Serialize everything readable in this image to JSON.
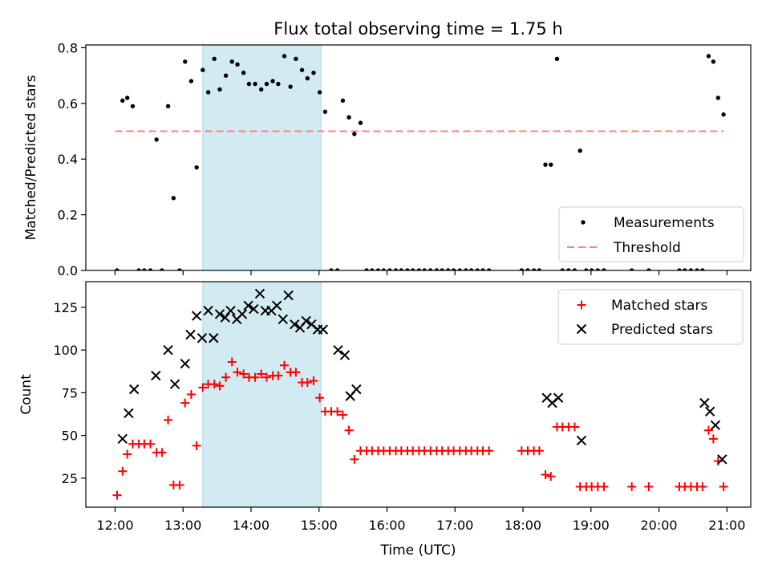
{
  "title": "Flux total observing time = 1.75 h",
  "xlabel": "Time (UTC)",
  "xticks": [
    "12:00",
    "13:00",
    "14:00",
    "15:00",
    "16:00",
    "17:00",
    "18:00",
    "19:00",
    "20:00",
    "21:00"
  ],
  "colors": {
    "measurement": "#000000",
    "threshold": "#ff7f7f",
    "matched": "#ff0000",
    "predicted": "#000000",
    "shade": "#add8e6"
  },
  "chart_data": [
    {
      "type": "scatter",
      "ylabel": "Matched/Predicted stars",
      "xlim": [
        11.57,
        21.35
      ],
      "ylim": [
        0,
        0.81
      ],
      "yticks": [
        "0.0",
        "0.2",
        "0.4",
        "0.6",
        "0.8"
      ],
      "ytick_values": [
        0,
        0.2,
        0.4,
        0.6,
        0.8
      ],
      "shaded_span": [
        13.29,
        15.03
      ],
      "legend": {
        "position": "lower right",
        "entries": [
          "Measurements",
          "Threshold"
        ]
      },
      "threshold": {
        "name": "Threshold",
        "value": 0.5,
        "x_range": [
          12.0,
          20.95
        ]
      },
      "series": [
        {
          "name": "Measurements",
          "x": [
            12.03,
            12.11,
            12.18,
            12.26,
            12.35,
            12.43,
            12.52,
            12.61,
            12.69,
            12.78,
            12.86,
            12.95,
            13.03,
            13.12,
            13.2,
            13.29,
            13.37,
            13.46,
            13.54,
            13.63,
            13.72,
            13.8,
            13.89,
            13.97,
            14.06,
            14.15,
            14.23,
            14.32,
            14.4,
            14.49,
            14.58,
            14.66,
            14.75,
            14.83,
            14.92,
            15.01,
            15.09,
            15.18,
            15.27,
            15.35,
            15.44,
            15.52,
            15.61,
            15.7,
            15.78,
            15.87,
            15.95,
            16.04,
            16.13,
            16.21,
            16.3,
            16.38,
            16.47,
            16.55,
            16.64,
            16.73,
            16.81,
            16.9,
            16.98,
            17.07,
            17.16,
            17.24,
            17.33,
            17.41,
            17.5,
            17.98,
            18.07,
            18.16,
            18.24,
            18.33,
            18.41,
            18.5,
            18.58,
            18.67,
            18.76,
            18.84,
            18.93,
            19.01,
            19.1,
            19.19,
            19.6,
            19.85,
            20.3,
            20.38,
            20.47,
            20.56,
            20.64,
            20.73,
            20.8,
            20.87,
            20.95
          ],
          "y": [
            0.0,
            0.61,
            0.62,
            0.59,
            0.0,
            0.0,
            0.0,
            0.47,
            0.0,
            0.59,
            0.26,
            0.0,
            0.75,
            0.68,
            0.37,
            0.72,
            0.64,
            0.76,
            0.65,
            0.7,
            0.75,
            0.74,
            0.71,
            0.67,
            0.67,
            0.65,
            0.67,
            0.68,
            0.67,
            0.77,
            0.66,
            0.76,
            0.72,
            0.69,
            0.71,
            0.64,
            0.57,
            0.0,
            0.0,
            0.61,
            0.55,
            0.49,
            0.53,
            0.0,
            0.0,
            0.0,
            0.0,
            0.0,
            0.0,
            0.0,
            0.0,
            0.0,
            0.0,
            0.0,
            0.0,
            0.0,
            0.0,
            0.0,
            0.0,
            0.0,
            0.0,
            0.0,
            0.0,
            0.0,
            0.0,
            0.0,
            0.0,
            0.0,
            0.0,
            0.38,
            0.38,
            0.76,
            0.0,
            0.0,
            0.0,
            0.43,
            0.0,
            0.0,
            0.0,
            0.0,
            0.0,
            0.0,
            0.0,
            0.0,
            0.0,
            0.0,
            0.0,
            0.77,
            0.75,
            0.62,
            0.56
          ]
        }
      ]
    },
    {
      "type": "scatter",
      "ylabel": "Count",
      "xlim": [
        11.57,
        21.35
      ],
      "ylim": [
        8,
        140
      ],
      "yticks": [
        "25",
        "50",
        "75",
        "100",
        "125"
      ],
      "ytick_values": [
        25,
        50,
        75,
        100,
        125
      ],
      "shaded_span": [
        13.29,
        15.03
      ],
      "legend": {
        "position": "upper right",
        "entries": [
          "Matched stars",
          "Predicted stars"
        ]
      },
      "series": [
        {
          "name": "Matched stars",
          "x": [
            12.03,
            12.11,
            12.18,
            12.26,
            12.35,
            12.43,
            12.52,
            12.61,
            12.69,
            12.78,
            12.86,
            12.95,
            13.03,
            13.12,
            13.2,
            13.29,
            13.37,
            13.46,
            13.54,
            13.63,
            13.72,
            13.8,
            13.89,
            13.97,
            14.06,
            14.15,
            14.23,
            14.32,
            14.4,
            14.49,
            14.58,
            14.66,
            14.75,
            14.83,
            14.92,
            15.01,
            15.09,
            15.18,
            15.27,
            15.35,
            15.44,
            15.52,
            15.61,
            15.7,
            15.78,
            15.87,
            15.95,
            16.04,
            16.13,
            16.21,
            16.3,
            16.38,
            16.47,
            16.55,
            16.64,
            16.73,
            16.81,
            16.9,
            16.98,
            17.07,
            17.16,
            17.24,
            17.33,
            17.41,
            17.5,
            17.98,
            18.07,
            18.16,
            18.24,
            18.33,
            18.41,
            18.5,
            18.58,
            18.67,
            18.76,
            18.84,
            18.93,
            19.01,
            19.1,
            19.19,
            19.6,
            19.85,
            20.3,
            20.38,
            20.47,
            20.56,
            20.64,
            20.73,
            20.8,
            20.87,
            20.95
          ],
          "y": [
            15,
            29,
            39,
            45,
            45,
            45,
            45,
            40,
            40,
            59,
            21,
            21,
            69,
            74,
            44,
            78,
            80,
            80,
            79,
            84,
            93,
            87,
            86,
            84,
            84,
            86,
            84,
            85,
            85,
            91,
            87,
            87,
            81,
            81,
            82,
            72,
            64,
            64,
            64,
            62,
            53,
            36,
            41,
            41,
            41,
            41,
            41,
            41,
            41,
            41,
            41,
            41,
            41,
            41,
            41,
            41,
            41,
            41,
            41,
            41,
            41,
            41,
            41,
            41,
            41,
            41,
            41,
            41,
            41,
            27,
            26,
            55,
            55,
            55,
            55,
            20,
            20,
            20,
            20,
            20,
            20,
            20,
            20,
            20,
            20,
            20,
            20,
            53,
            48,
            35,
            20
          ]
        },
        {
          "name": "Predicted stars",
          "x": [
            12.11,
            12.2,
            12.28,
            12.6,
            12.78,
            12.88,
            13.03,
            13.11,
            13.2,
            13.28,
            13.37,
            13.45,
            13.54,
            13.62,
            13.7,
            13.79,
            13.87,
            13.96,
            14.04,
            14.13,
            14.21,
            14.3,
            14.38,
            14.47,
            14.55,
            14.64,
            14.72,
            14.81,
            14.89,
            14.98,
            15.06,
            15.28,
            15.38,
            15.46,
            15.55,
            18.35,
            18.43,
            18.52,
            18.86,
            20.67,
            20.75,
            20.83,
            20.93
          ],
          "y": [
            48,
            63,
            77,
            85,
            100,
            80,
            92,
            109,
            120,
            107,
            123,
            107,
            121,
            119,
            123,
            118,
            121,
            126,
            124,
            133,
            123,
            123,
            126,
            118,
            132,
            115,
            113,
            117,
            115,
            112,
            112,
            100,
            97,
            73,
            77,
            72,
            69,
            72,
            47,
            69,
            64,
            56,
            36
          ]
        }
      ]
    }
  ]
}
